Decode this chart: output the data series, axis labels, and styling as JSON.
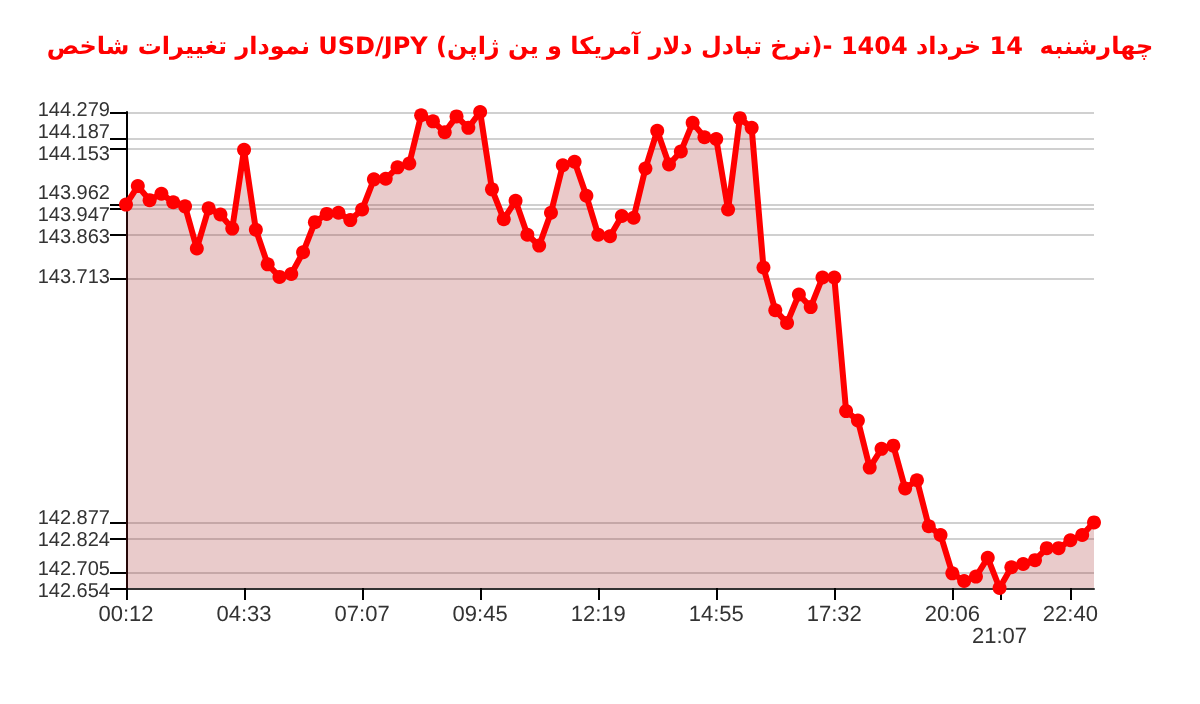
{
  "chart_data": {
    "type": "area",
    "title": "نمودار تغییرات شاخص USD/JPY (نرخ تبادل دلار آمریکا و ین ژاپن)- چهارشنبه  14 خرداد 1404",
    "categories": [
      "00:12",
      null,
      null,
      null,
      null,
      null,
      null,
      null,
      null,
      null,
      "04:33",
      null,
      null,
      null,
      null,
      null,
      null,
      null,
      null,
      null,
      "07:07",
      null,
      null,
      null,
      null,
      null,
      null,
      null,
      null,
      null,
      "09:45",
      null,
      null,
      null,
      null,
      null,
      null,
      null,
      null,
      null,
      "12:19",
      null,
      null,
      null,
      null,
      null,
      null,
      null,
      null,
      null,
      "14:55",
      null,
      null,
      null,
      null,
      null,
      null,
      null,
      null,
      null,
      "17:32",
      null,
      null,
      null,
      null,
      null,
      null,
      null,
      null,
      null,
      "20:06",
      null,
      null,
      null,
      "21:07",
      null,
      null,
      null,
      null,
      null,
      "22:40",
      null,
      null
    ],
    "series": [
      {
        "color": "#ff0000",
        "values": [
          143.963,
          144.026,
          143.978,
          144.0,
          143.971,
          143.957,
          143.813,
          143.95,
          143.929,
          143.881,
          144.15,
          143.877,
          143.759,
          143.716,
          143.726,
          143.8,
          143.903,
          143.931,
          143.935,
          143.91,
          143.946,
          144.049,
          144.051,
          144.09,
          144.103,
          144.268,
          144.247,
          144.21,
          144.264,
          144.225,
          144.279,
          144.015,
          143.913,
          143.976,
          143.86,
          143.823,
          143.935,
          144.097,
          144.109,
          143.993,
          143.86,
          143.855,
          143.924,
          143.918,
          144.086,
          144.215,
          144.1,
          144.144,
          144.242,
          144.193,
          144.187,
          143.946,
          144.258,
          144.225,
          143.748,
          143.602,
          143.559,
          143.656,
          143.613,
          143.714,
          143.714,
          143.258,
          143.226,
          143.065,
          143.129,
          143.14,
          142.994,
          143.022,
          142.865,
          142.835,
          142.704,
          142.678,
          142.693,
          142.757,
          142.654,
          142.725,
          142.736,
          142.749,
          142.79,
          142.79,
          142.817,
          142.835,
          142.878
        ]
      }
    ],
    "ylim": [
      142.654,
      144.279
    ],
    "yticks": [
      144.279,
      144.187,
      144.153,
      143.962,
      143.947,
      143.863,
      143.713,
      142.877,
      142.824,
      142.705,
      142.654
    ],
    "grid": "y",
    "marker": "circle"
  }
}
